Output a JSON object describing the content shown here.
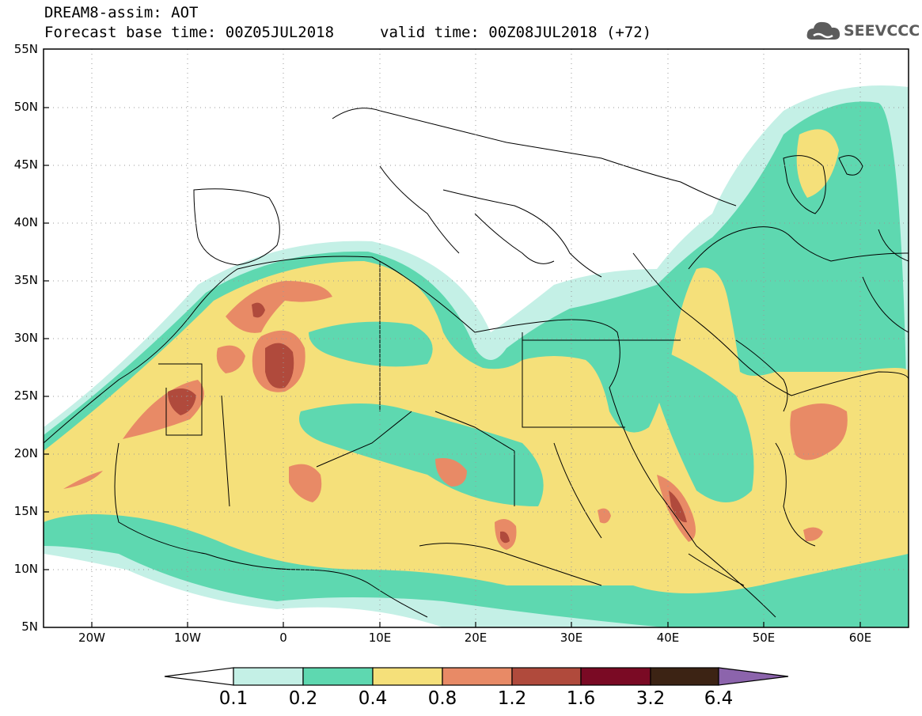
{
  "header": {
    "title": "DREAM8-assim: AOT",
    "base_time": "Forecast base time: 00Z05JUL2018",
    "valid_time": "valid time: 00Z08JUL2018 (+72)"
  },
  "logo": {
    "text": "SEEVCCC",
    "icon": "cloud-logo-icon",
    "color": "#5c5c5c"
  },
  "map": {
    "variable": "AOT",
    "lon_range": [
      -25,
      65
    ],
    "lat_range": [
      5,
      55
    ],
    "lat_labels": [
      "55N",
      "50N",
      "45N",
      "40N",
      "35N",
      "30N",
      "25N",
      "20N",
      "15N",
      "10N",
      "5N"
    ],
    "lon_labels": [
      "20W",
      "10W",
      "0",
      "10E",
      "20E",
      "30E",
      "40E",
      "50E",
      "60E"
    ],
    "grid": "dotted"
  },
  "colorbar": {
    "labels": [
      "0.1",
      "0.2",
      "0.4",
      "0.8",
      "1.2",
      "1.6",
      "3.2",
      "6.4"
    ],
    "colors": [
      "#ffffff",
      "#c4f0e6",
      "#5ed8b0",
      "#f5e07a",
      "#e88a66",
      "#b04a3c",
      "#7a0a24",
      "#3c2314",
      "#8c64ac"
    ]
  }
}
